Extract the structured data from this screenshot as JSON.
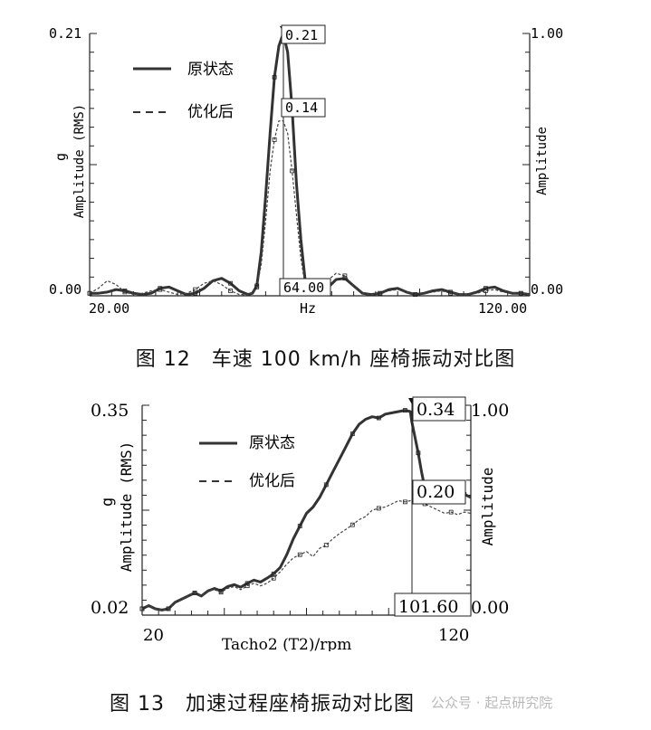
{
  "chart_data": [
    {
      "type": "line",
      "xlabel": "Hz",
      "ylabel": "Amplitude (RMS)",
      "yunit": "g",
      "y2label": "Amplitude",
      "x_ticks": [
        "20.00",
        "120.00"
      ],
      "y_ticks": [
        "0.00",
        "0.21"
      ],
      "y2_ticks": [
        "0.00",
        "1.00"
      ],
      "xlim": [
        20,
        120
      ],
      "ylim": [
        0,
        0.21
      ],
      "legend": [
        "原状态",
        "优化后"
      ],
      "legend_position": "top-left",
      "cursor_x_label": "64.00",
      "cursor_values": [
        "0.21",
        "0.14"
      ],
      "series": [
        {
          "name": "原状态",
          "style": "solid",
          "x": [
            20,
            22,
            24,
            26,
            28,
            30,
            32,
            34,
            36,
            38,
            40,
            42,
            44,
            46,
            48,
            50,
            52,
            54,
            56,
            57,
            58,
            59,
            60,
            61,
            62,
            63,
            64,
            65,
            66,
            67,
            68,
            69,
            70,
            72,
            74,
            76,
            78,
            80,
            82,
            84,
            86,
            88,
            90,
            92,
            94,
            96,
            98,
            100,
            102,
            104,
            106,
            108,
            110,
            112,
            114,
            116,
            118,
            120
          ],
          "y": [
            0.002,
            0.002,
            0.003,
            0.005,
            0.004,
            0.002,
            0.001,
            0.002,
            0.006,
            0.007,
            0.004,
            0.001,
            0.002,
            0.006,
            0.012,
            0.014,
            0.01,
            0.004,
            0.001,
            0.002,
            0.008,
            0.035,
            0.08,
            0.13,
            0.175,
            0.2,
            0.21,
            0.195,
            0.15,
            0.09,
            0.045,
            0.012,
            0.002,
            0.001,
            0.006,
            0.013,
            0.014,
            0.008,
            0.002,
            0.001,
            0.002,
            0.005,
            0.006,
            0.003,
            0.001,
            0.002,
            0.004,
            0.005,
            0.003,
            0.001,
            0.001,
            0.003,
            0.006,
            0.007,
            0.004,
            0.002,
            0.002,
            0.001
          ]
        },
        {
          "name": "优化后",
          "style": "dashed",
          "x": [
            20,
            22,
            24,
            26,
            28,
            30,
            32,
            34,
            36,
            38,
            40,
            42,
            44,
            46,
            48,
            50,
            52,
            54,
            56,
            57,
            58,
            59,
            60,
            61,
            62,
            63,
            64,
            65,
            66,
            67,
            68,
            69,
            70,
            72,
            74,
            76,
            78,
            80,
            82,
            84,
            86,
            88,
            90,
            92,
            94,
            96,
            98,
            100,
            102,
            104,
            106,
            108,
            110,
            112,
            114,
            116,
            118,
            120
          ],
          "y": [
            0.002,
            0.006,
            0.012,
            0.009,
            0.003,
            0.001,
            0.002,
            0.004,
            0.005,
            0.003,
            0.001,
            0.002,
            0.005,
            0.01,
            0.012,
            0.009,
            0.004,
            0.001,
            0.001,
            0.002,
            0.007,
            0.025,
            0.06,
            0.1,
            0.125,
            0.14,
            0.14,
            0.13,
            0.1,
            0.065,
            0.03,
            0.008,
            0.002,
            0.004,
            0.012,
            0.018,
            0.016,
            0.008,
            0.002,
            0.001,
            0.002,
            0.004,
            0.005,
            0.003,
            0.001,
            0.002,
            0.003,
            0.004,
            0.002,
            0.001,
            0.001,
            0.002,
            0.004,
            0.005,
            0.003,
            0.002,
            0.002,
            0.001
          ]
        }
      ],
      "caption": "图 12　车速 100 km/h 座椅振动对比图"
    },
    {
      "type": "line",
      "xlabel": "Tacho2 (T2)/rpm",
      "ylabel": "Amplitude (RMS)",
      "yunit": "g",
      "y2label": "Amplitude",
      "x_ticks": [
        "20",
        "120"
      ],
      "y_ticks": [
        "0.02",
        "0.35"
      ],
      "y2_ticks": [
        "0.00",
        "1.00"
      ],
      "xlim": [
        20,
        120
      ],
      "ylim": [
        0.02,
        0.35
      ],
      "legend": [
        "原状态",
        "优化后"
      ],
      "legend_position": "top-left",
      "cursor_x_label": "101.60",
      "cursor_values": [
        "0.34",
        "0.20"
      ],
      "series": [
        {
          "name": "原状态",
          "style": "solid",
          "x": [
            20,
            22,
            24,
            26,
            28,
            30,
            32,
            34,
            36,
            38,
            40,
            42,
            44,
            46,
            48,
            50,
            52,
            54,
            56,
            58,
            60,
            62,
            64,
            66,
            68,
            70,
            72,
            74,
            76,
            78,
            80,
            82,
            84,
            86,
            88,
            90,
            92,
            94,
            96,
            98,
            100,
            101.6,
            102,
            103,
            104,
            105,
            106,
            108,
            110,
            112,
            114,
            116,
            118,
            120
          ],
          "y": [
            0.03,
            0.035,
            0.03,
            0.028,
            0.03,
            0.04,
            0.045,
            0.05,
            0.055,
            0.05,
            0.058,
            0.062,
            0.058,
            0.065,
            0.068,
            0.064,
            0.07,
            0.075,
            0.072,
            0.078,
            0.085,
            0.095,
            0.115,
            0.14,
            0.16,
            0.18,
            0.19,
            0.205,
            0.225,
            0.245,
            0.265,
            0.285,
            0.305,
            0.32,
            0.328,
            0.332,
            0.33,
            0.336,
            0.338,
            0.34,
            0.342,
            0.34,
            0.325,
            0.3,
            0.275,
            0.245,
            0.22,
            0.2,
            0.21,
            0.2,
            0.205,
            0.198,
            0.21,
            0.205
          ]
        },
        {
          "name": "优化后",
          "style": "dashed",
          "x": [
            20,
            22,
            24,
            26,
            28,
            30,
            32,
            34,
            36,
            38,
            40,
            42,
            44,
            46,
            48,
            50,
            52,
            54,
            56,
            58,
            60,
            62,
            64,
            66,
            68,
            70,
            72,
            74,
            76,
            78,
            80,
            82,
            84,
            86,
            88,
            90,
            92,
            94,
            96,
            98,
            100,
            101.6,
            102,
            104,
            106,
            108,
            110,
            112,
            114,
            116,
            118,
            120
          ],
          "y": [
            0.03,
            0.035,
            0.03,
            0.028,
            0.03,
            0.04,
            0.045,
            0.05,
            0.055,
            0.05,
            0.058,
            0.06,
            0.056,
            0.062,
            0.065,
            0.06,
            0.066,
            0.07,
            0.066,
            0.07,
            0.078,
            0.088,
            0.1,
            0.11,
            0.115,
            0.12,
            0.112,
            0.125,
            0.13,
            0.14,
            0.148,
            0.155,
            0.162,
            0.17,
            0.175,
            0.185,
            0.188,
            0.19,
            0.195,
            0.2,
            0.198,
            0.2,
            0.2,
            0.198,
            0.195,
            0.19,
            0.185,
            0.18,
            0.182,
            0.178,
            0.182,
            0.18
          ]
        }
      ],
      "caption": "图 13　加速过程座椅振动对比图"
    }
  ],
  "watermark": "公众号 · 起点研究院"
}
